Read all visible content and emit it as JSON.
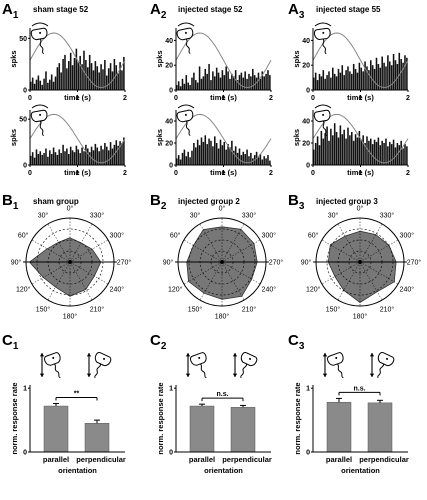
{
  "figure": {
    "rowA": [
      {
        "letter": "A",
        "sub": "1",
        "title": "sham stage 52"
      },
      {
        "letter": "A",
        "sub": "2",
        "title": "injected stage 52"
      },
      {
        "letter": "A",
        "sub": "3",
        "title": "injected stage 55"
      }
    ],
    "rowB": [
      {
        "letter": "B",
        "sub": "1",
        "title": "sham group"
      },
      {
        "letter": "B",
        "sub": "2",
        "title": "injected group 2"
      },
      {
        "letter": "B",
        "sub": "3",
        "title": "injected group 3"
      }
    ],
    "rowC": [
      {
        "letter": "C",
        "sub": "1"
      },
      {
        "letter": "C",
        "sub": "2"
      },
      {
        "letter": "C",
        "sub": "3"
      }
    ],
    "histogram_labels": {
      "ylabel": "spks",
      "xlabel": "time (s)",
      "xt0": "0",
      "xt1": "1",
      "xt2": "2"
    },
    "polar_angles": [
      "0°",
      "330°",
      "300°",
      "270°",
      "240°",
      "210°",
      "180°",
      "150°",
      "120°",
      "90°",
      "60°",
      "30°"
    ],
    "bar_labels": {
      "ylabel": "norm. response rate",
      "xlabel": "orientation",
      "cat1": "parallel",
      "cat2": "perpendicular"
    }
  },
  "chart_data": [
    {
      "type": "bar",
      "panel": "A1-top",
      "ylim": [
        0,
        60
      ],
      "yticks": [
        "0",
        "50"
      ],
      "xlim": [
        0,
        2
      ],
      "bin_s": 0.04,
      "values": [
        8,
        12,
        6,
        10,
        14,
        9,
        5,
        11,
        18,
        7,
        10,
        15,
        8,
        13,
        22,
        26,
        17,
        30,
        34,
        21,
        28,
        36,
        24,
        31,
        40,
        27,
        33,
        25,
        38,
        29,
        22,
        34,
        26,
        19,
        28,
        23,
        17,
        25,
        20,
        29,
        14,
        21,
        26,
        18,
        30,
        24,
        16,
        27,
        19,
        32
      ]
    },
    {
      "type": "bar",
      "panel": "A1-bottom",
      "ylim": [
        0,
        60
      ],
      "yticks": [
        "0",
        "50"
      ],
      "xlim": [
        0,
        2
      ],
      "bin_s": 0.04,
      "values": [
        10,
        14,
        8,
        17,
        12,
        15,
        11,
        13,
        18,
        9,
        16,
        12,
        19,
        14,
        11,
        17,
        13,
        22,
        15,
        18,
        12,
        20,
        16,
        14,
        21,
        17,
        13,
        19,
        15,
        22,
        18,
        14,
        20,
        16,
        23,
        19,
        15,
        21,
        17,
        24,
        20,
        16,
        25,
        18,
        22,
        27,
        21,
        26,
        24,
        30
      ]
    },
    {
      "type": "bar",
      "panel": "A2-top",
      "ylim": [
        0,
        50
      ],
      "yticks": [
        "0",
        "20",
        "40"
      ],
      "xlim": [
        0,
        2
      ],
      "bin_s": 0.04,
      "values": [
        4,
        7,
        3,
        9,
        5,
        12,
        6,
        4,
        10,
        14,
        8,
        6,
        19,
        9,
        11,
        17,
        13,
        21,
        8,
        15,
        11,
        18,
        14,
        10,
        16,
        12,
        19,
        15,
        9,
        13,
        11,
        16,
        8,
        12,
        14,
        10,
        15,
        9,
        13,
        11,
        17,
        12,
        10,
        14,
        9,
        15,
        11,
        13,
        16,
        12
      ]
    },
    {
      "type": "bar",
      "panel": "A2-bottom",
      "ylim": [
        0,
        50
      ],
      "yticks": [
        "0",
        "20",
        "40"
      ],
      "xlim": [
        0,
        2
      ],
      "bin_s": 0.04,
      "values": [
        6,
        9,
        5,
        11,
        14,
        8,
        12,
        7,
        13,
        20,
        16,
        23,
        18,
        25,
        21,
        27,
        19,
        24,
        22,
        17,
        26,
        20,
        15,
        23,
        18,
        21,
        14,
        19,
        16,
        22,
        13,
        17,
        11,
        15,
        9,
        12,
        10,
        14,
        8,
        11,
        6,
        9,
        12,
        7,
        10,
        5,
        8,
        6,
        9,
        4
      ]
    },
    {
      "type": "bar",
      "panel": "A3-top",
      "ylim": [
        0,
        50
      ],
      "yticks": [
        "0",
        "20",
        "40"
      ],
      "xlim": [
        0,
        2
      ],
      "bin_s": 0.04,
      "values": [
        10,
        14,
        8,
        13,
        11,
        16,
        9,
        12,
        15,
        10,
        18,
        13,
        11,
        17,
        14,
        20,
        12,
        16,
        19,
        15,
        13,
        21,
        17,
        14,
        22,
        18,
        15,
        23,
        19,
        16,
        24,
        20,
        17,
        26,
        21,
        18,
        27,
        22,
        19,
        28,
        23,
        20,
        29,
        24,
        21,
        30,
        25,
        22,
        28,
        26
      ]
    },
    {
      "type": "bar",
      "panel": "A3-bottom",
      "ylim": [
        0,
        50
      ],
      "yticks": [
        "0",
        "20",
        "40"
      ],
      "xlim": [
        0,
        2
      ],
      "bin_s": 0.04,
      "values": [
        14,
        20,
        26,
        18,
        31,
        24,
        29,
        35,
        22,
        33,
        27,
        38,
        30,
        25,
        36,
        28,
        32,
        24,
        34,
        27,
        30,
        22,
        28,
        25,
        31,
        23,
        27,
        20,
        26,
        22,
        24,
        19,
        23,
        21,
        25,
        18,
        22,
        20,
        24,
        17,
        21,
        19,
        23,
        16,
        20,
        18,
        22,
        15,
        19,
        17
      ]
    },
    {
      "type": "radar",
      "panel": "B1",
      "angles_deg": [
        0,
        30,
        60,
        90,
        120,
        150,
        180,
        210,
        240,
        270,
        300,
        330
      ],
      "values": [
        0.55,
        0.52,
        0.6,
        0.92,
        0.7,
        0.66,
        0.78,
        0.72,
        0.64,
        0.7,
        0.58,
        0.5
      ]
    },
    {
      "type": "radar",
      "panel": "B2",
      "angles_deg": [
        0,
        30,
        60,
        90,
        120,
        150,
        180,
        210,
        240,
        270,
        300,
        330
      ],
      "values": [
        0.8,
        0.85,
        0.75,
        0.8,
        0.88,
        0.82,
        0.85,
        0.9,
        0.78,
        0.8,
        0.84,
        0.86
      ]
    },
    {
      "type": "radar",
      "panel": "B3",
      "angles_deg": [
        0,
        30,
        60,
        90,
        120,
        150,
        180,
        210,
        240,
        270,
        300,
        330
      ],
      "values": [
        0.7,
        0.68,
        0.78,
        0.72,
        0.66,
        0.74,
        0.92,
        0.78,
        0.9,
        0.82,
        0.76,
        0.72
      ]
    },
    {
      "type": "bar",
      "panel": "C1",
      "categories": [
        "parallel",
        "perpendicular"
      ],
      "values": [
        0.72,
        0.45
      ],
      "errors": [
        0.04,
        0.05
      ],
      "ylim": [
        0,
        1.0
      ],
      "yticks": [
        "0",
        "1"
      ],
      "ylabel": "norm. response rate",
      "xlabel": "orientation",
      "significance": "**"
    },
    {
      "type": "bar",
      "panel": "C2",
      "categories": [
        "parallel",
        "perpendicular"
      ],
      "values": [
        0.72,
        0.7
      ],
      "errors": [
        0.03,
        0.03
      ],
      "ylim": [
        0,
        1.0
      ],
      "yticks": [
        "0",
        "1"
      ],
      "ylabel": "norm. response rate",
      "xlabel": "orientation",
      "significance": "n.s."
    },
    {
      "type": "bar",
      "panel": "C3",
      "categories": [
        "parallel",
        "perpendicular"
      ],
      "values": [
        0.78,
        0.77
      ],
      "errors": [
        0.06,
        0.04
      ],
      "ylim": [
        0,
        1.0
      ],
      "yticks": [
        "0",
        "1"
      ],
      "ylabel": "norm. response rate",
      "xlabel": "orientation",
      "significance": "n.s."
    }
  ]
}
